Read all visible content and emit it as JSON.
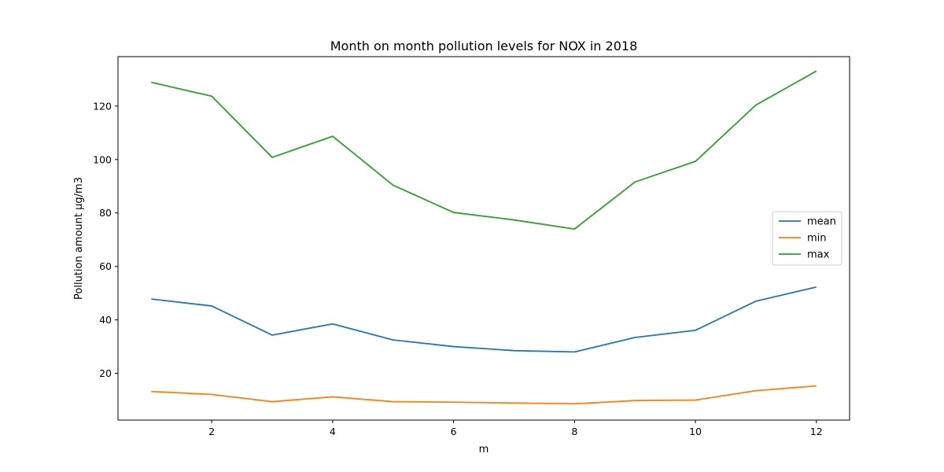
{
  "chart_data": {
    "type": "line",
    "title": "Month on month pollution levels for NOX in 2018",
    "xlabel": "m",
    "ylabel": "Pollution amount µg/m3",
    "x": [
      1,
      2,
      3,
      4,
      5,
      6,
      7,
      8,
      9,
      10,
      11,
      12
    ],
    "xlim": [
      0.45,
      12.55
    ],
    "ylim": [
      2.5,
      138.5
    ],
    "xticks": [
      2,
      4,
      6,
      8,
      10,
      12
    ],
    "yticks": [
      20,
      40,
      60,
      80,
      100,
      120
    ],
    "grid": false,
    "legend_position": "center-right",
    "series": [
      {
        "name": "mean",
        "color": "#1f77b4",
        "values": [
          47.8,
          45.2,
          34.3,
          38.5,
          32.5,
          30.0,
          28.5,
          28.0,
          33.4,
          36.1,
          47.0,
          52.3
        ]
      },
      {
        "name": "min",
        "color": "#ff7f0e",
        "values": [
          13.2,
          12.1,
          9.4,
          11.2,
          9.4,
          9.2,
          8.9,
          8.6,
          9.8,
          10.0,
          13.5,
          15.3
        ]
      },
      {
        "name": "max",
        "color": "#2ca02c",
        "values": [
          128.9,
          123.7,
          100.8,
          108.7,
          90.4,
          80.2,
          77.4,
          74.0,
          91.6,
          99.3,
          120.4,
          133.1
        ]
      }
    ]
  }
}
